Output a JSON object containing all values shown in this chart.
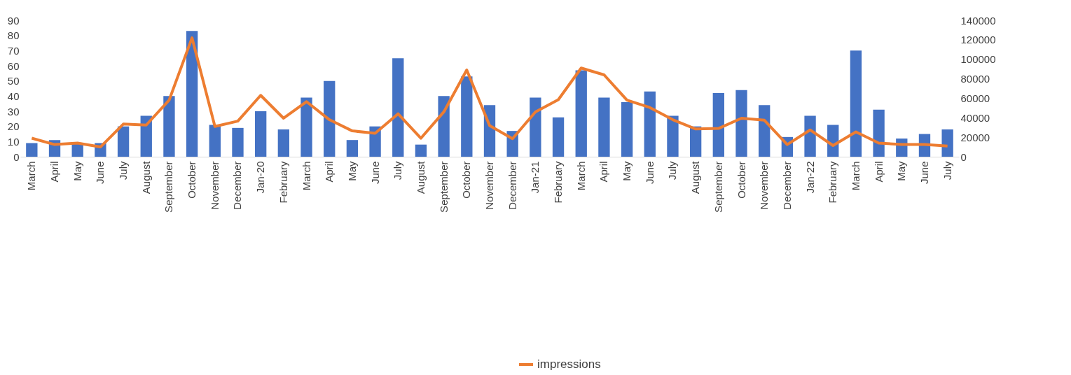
{
  "chart_data": {
    "type": "bar",
    "categories": [
      "March",
      "April",
      "May",
      "June",
      "July",
      "August",
      "September",
      "October",
      "November",
      "December",
      "Jan-20",
      "February",
      "March",
      "April",
      "May",
      "June",
      "July",
      "August",
      "September",
      "October",
      "November",
      "December",
      "Jan-21",
      "February",
      "March",
      "April",
      "May",
      "June",
      "July",
      "August",
      "September",
      "October",
      "November",
      "December",
      "Jan-22",
      "February",
      "March",
      "April",
      "May",
      "June",
      "July"
    ],
    "series": [
      {
        "color": "#4472c4",
        "values": [
          9,
          11,
          9,
          9,
          20,
          27,
          40,
          83,
          21,
          19,
          30,
          18,
          39,
          50,
          11,
          20,
          65,
          8,
          40,
          53,
          34,
          17,
          39,
          26,
          57,
          39,
          36,
          43,
          27,
          20,
          42,
          44,
          34,
          13,
          27,
          21,
          70,
          31,
          12,
          15,
          18
        ]
      },
      {
        "type": "line",
        "name": "impressions",
        "axis": "y2",
        "color": "#ed7d31",
        "values": [
          19000,
          12500,
          14000,
          10000,
          33500,
          32500,
          58000,
          122000,
          31000,
          36500,
          63000,
          39500,
          56500,
          38000,
          26500,
          24000,
          44000,
          19000,
          46000,
          89000,
          32000,
          18500,
          46000,
          58500,
          91000,
          84000,
          58000,
          50500,
          38000,
          28500,
          29000,
          39500,
          37500,
          12500,
          27500,
          11500,
          25500,
          14000,
          12500,
          12500,
          11000
        ]
      }
    ],
    "ylim": [
      0,
      90
    ],
    "yticks": [
      0,
      10,
      20,
      30,
      40,
      50,
      60,
      70,
      80,
      90
    ],
    "y2lim": [
      0,
      140000
    ],
    "y2ticks": [
      0,
      20000,
      40000,
      60000,
      80000,
      100000,
      120000,
      140000
    ],
    "grid": false,
    "legend": "bottom",
    "marker": "none",
    "line_style": "solid"
  }
}
